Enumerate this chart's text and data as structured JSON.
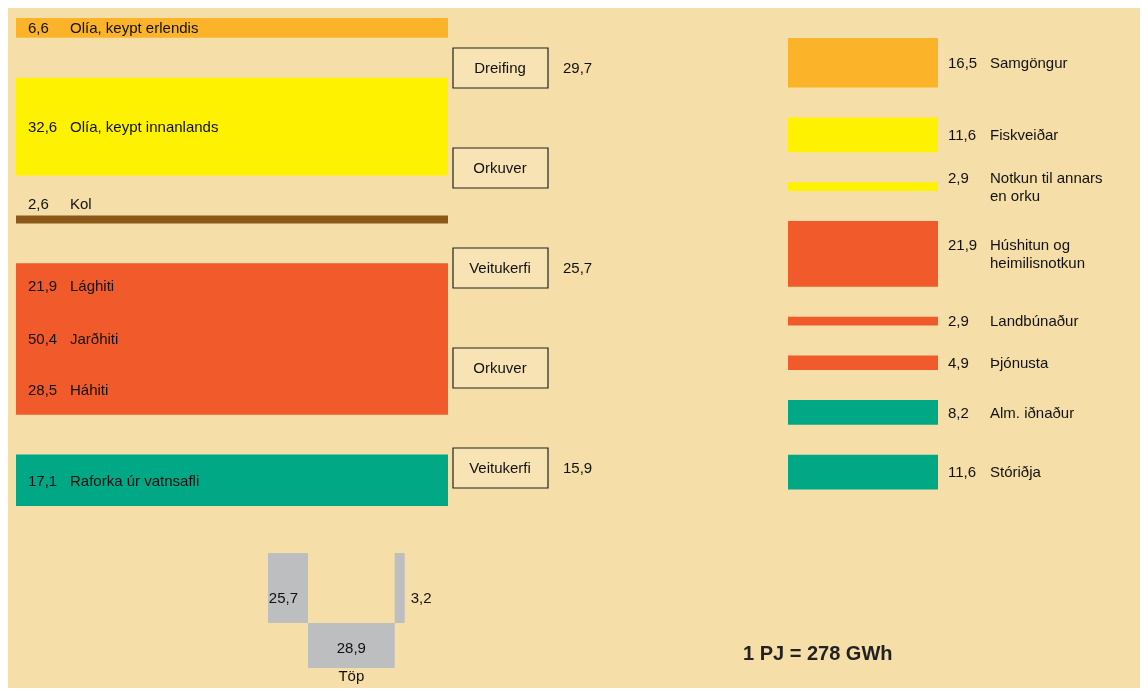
{
  "chart_data": {
    "type": "other",
    "categories": [
      "Olía, keypt erlendis",
      "Olía, keypt innanlands",
      "Kol",
      "Lághiti",
      "Jarðhiti",
      "Háhiti",
      "Raforka úr vatnsafli",
      "Dreifing",
      "Orkuver",
      "Veitukerfi",
      "Orkuver",
      "Veitukerfi",
      "Samgöngur",
      "Fiskveiðar",
      "Notkun til annars en orku",
      "Húshitun og heimilisnotkun",
      "Landbúnaður",
      "Þjónusta",
      "Alm. iðnaður",
      "Stóriðja",
      "Töp"
    ],
    "series": [
      {
        "values": [
          6.6,
          32.6,
          2.6,
          null,
          50.4,
          null,
          17.1,
          null,
          null,
          null,
          null,
          null,
          null,
          null,
          null,
          null,
          null,
          null,
          null,
          null,
          null
        ],
        "value_labels": [
          "6,6",
          "32,6",
          "2,6",
          null,
          "50,4",
          null,
          "17,1",
          null,
          null,
          null,
          null,
          null,
          null,
          null,
          null,
          null,
          null,
          null,
          null,
          null,
          null
        ],
        "colors": [
          "#fbb32a",
          "#fff200",
          "#8b5a1a",
          null,
          "#f15a2b",
          null,
          "#00a886",
          null,
          null,
          null,
          null,
          null,
          null,
          null,
          null,
          null,
          null,
          null,
          null,
          null,
          null
        ]
      },
      {
        "values": [
          null,
          null,
          null,
          21.9,
          null,
          28.5,
          null,
          null,
          null,
          null,
          null,
          null,
          null,
          null,
          null,
          null,
          null,
          null,
          null,
          null,
          null
        ],
        "value_labels": [
          null,
          null,
          null,
          "21,9",
          null,
          "28,5",
          null,
          null,
          null,
          null,
          null,
          null,
          null,
          null,
          null,
          null,
          null,
          null,
          null,
          null,
          null
        ],
        "colors": [
          null,
          null,
          null,
          "#f15a2b",
          null,
          "#f15a2b",
          null,
          null,
          null,
          null,
          null,
          null,
          null,
          null,
          null,
          null,
          null,
          null,
          null,
          null,
          null
        ]
      },
      {
        "values": [
          null,
          null,
          null,
          null,
          null,
          null,
          null,
          29.7,
          null,
          25.7,
          null,
          15.9,
          null,
          null,
          null,
          null,
          null,
          null,
          null,
          null,
          null
        ],
        "value_labels": [
          null,
          null,
          null,
          null,
          null,
          null,
          null,
          "29,7",
          null,
          "25,7",
          null,
          "15,9",
          null,
          null,
          null,
          null,
          null,
          null,
          null,
          null,
          null
        ],
        "colors": [
          null,
          null,
          null,
          null,
          null,
          null,
          null,
          "#f7e3b3",
          "#f7e3b3",
          "#f7e3b3",
          "#f7e3b3",
          "#f7e3b3",
          null,
          null,
          null,
          null,
          null,
          null,
          null,
          null,
          null
        ]
      },
      {
        "values": [
          null,
          null,
          null,
          null,
          null,
          null,
          null,
          null,
          null,
          null,
          null,
          null,
          16.5,
          11.6,
          2.9,
          21.9,
          2.9,
          4.9,
          8.2,
          11.6,
          null
        ],
        "value_labels": [
          null,
          null,
          null,
          null,
          null,
          null,
          null,
          null,
          null,
          null,
          null,
          null,
          "16,5",
          "11,6",
          "2,9",
          "21,9",
          "2,9",
          "4,9",
          "8,2",
          "11,6",
          null
        ],
        "colors": [
          null,
          null,
          null,
          null,
          null,
          null,
          null,
          null,
          null,
          null,
          null,
          null,
          "#fbb32a",
          "#fff200",
          "#fff200",
          "#f15a2b",
          "#f15a2b",
          "#f15a2b",
          "#00a886",
          "#00a886",
          null
        ]
      },
      {
        "values": [
          null,
          null,
          null,
          null,
          null,
          null,
          null,
          null,
          null,
          null,
          null,
          null,
          null,
          null,
          null,
          null,
          null,
          null,
          null,
          null,
          28.9
        ],
        "value_labels": [
          null,
          null,
          null,
          null,
          null,
          null,
          null,
          null,
          null,
          null,
          null,
          null,
          null,
          null,
          null,
          null,
          null,
          null,
          null,
          null,
          "28,9"
        ],
        "colors": [
          null,
          null,
          null,
          null,
          null,
          null,
          null,
          null,
          null,
          null,
          null,
          null,
          null,
          null,
          null,
          null,
          null,
          null,
          null,
          null,
          "#bcbec0"
        ]
      }
    ],
    "annotations": [
      "25,7",
      "3,2",
      "1 PJ = 278 GWh"
    ]
  }
}
